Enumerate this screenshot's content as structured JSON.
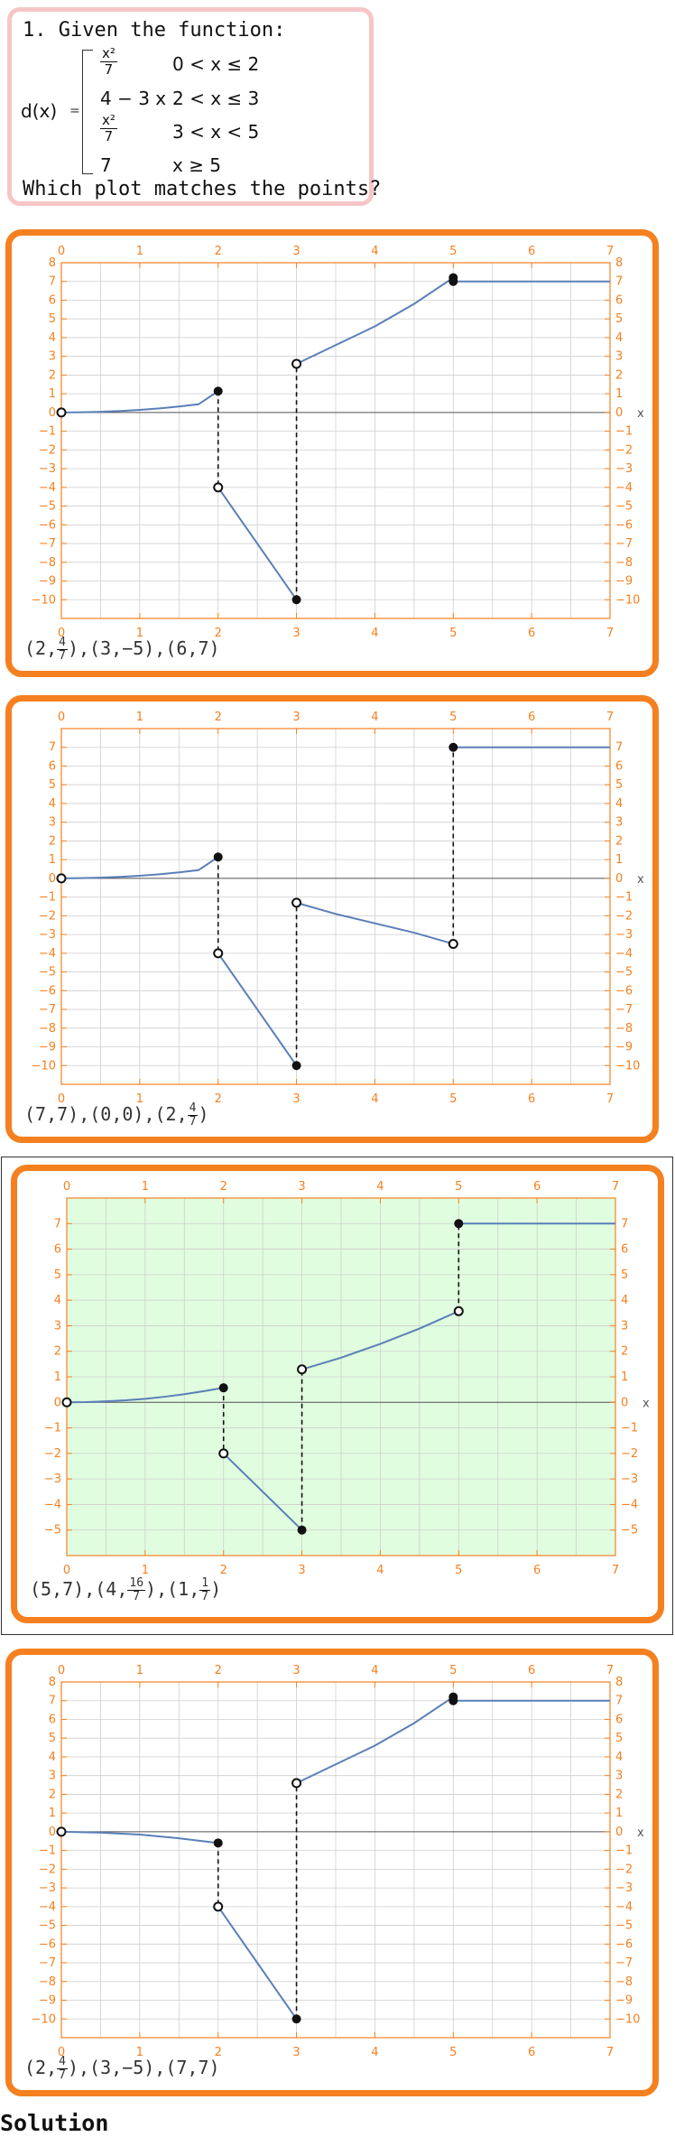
{
  "question": {
    "title": "1. Given the function:",
    "prompt": "Which plot matches the points?",
    "function_name": "d(x)",
    "equals": "=",
    "cases": [
      {
        "expr_type": "fraction",
        "num": "x²",
        "den": "7",
        "cond": "0 < x ≤ 2"
      },
      {
        "expr_type": "text",
        "expr": "4 − 3 x",
        "cond": "2 < x ≤ 3"
      },
      {
        "expr_type": "fraction",
        "num": "x²",
        "den": "7",
        "cond": "3 < x < 5"
      },
      {
        "expr_type": "text",
        "expr": "7",
        "cond": "x ≥ 5"
      }
    ]
  },
  "colors": {
    "frame": "#f5801f",
    "axis": "#f5801f",
    "grid": "#cfcfcf",
    "curve": "#5a7fb8",
    "highlight_bg": "#e0fddf",
    "question_border": "#f6c6c6"
  },
  "chart_data": [
    {
      "type": "line",
      "xlim": [
        0,
        7
      ],
      "ylim": [
        -11,
        8
      ],
      "xticks": [
        0,
        1,
        2,
        3,
        4,
        5,
        6,
        7
      ],
      "yticks": [
        -10,
        -9,
        -8,
        -7,
        -6,
        -5,
        -4,
        -3,
        -2,
        -1,
        0,
        1,
        2,
        3,
        4,
        5,
        6,
        7,
        8
      ],
      "xlabel": "x",
      "grid": true,
      "selected": false,
      "series": [
        {
          "x": [
            0,
            0.25,
            0.5,
            0.75,
            1,
            1.25,
            1.5,
            1.75,
            2
          ],
          "y": [
            0,
            0.01,
            0.04,
            0.08,
            0.14,
            0.22,
            0.32,
            0.44,
            1.14
          ]
        },
        {
          "x": [
            2,
            3
          ],
          "y": [
            -4,
            -10
          ]
        },
        {
          "x": [
            3,
            3.5,
            4,
            4.5,
            5
          ],
          "y": [
            2.6,
            3.6,
            4.6,
            5.8,
            7.2
          ]
        },
        {
          "x": [
            5,
            7
          ],
          "y": [
            7,
            7
          ]
        }
      ],
      "dashed": [
        {
          "x": 2,
          "y1": 1.14,
          "y2": -4
        },
        {
          "x": 3,
          "y1": -10,
          "y2": 2.6
        }
      ],
      "points_filled": [
        [
          2,
          1.14
        ],
        [
          3,
          -10
        ],
        [
          5,
          7.2
        ],
        [
          5,
          7
        ]
      ],
      "points_open": [
        [
          0,
          0
        ],
        [
          2,
          -4
        ],
        [
          3,
          2.6
        ]
      ],
      "caption": [
        {
          "t": "(2,"
        },
        {
          "frac": [
            "4",
            "7"
          ]
        },
        {
          "t": "),(3,−5),(6,7)"
        }
      ]
    },
    {
      "type": "line",
      "xlim": [
        0,
        7
      ],
      "ylim": [
        -11,
        8
      ],
      "xticks": [
        0,
        1,
        2,
        3,
        4,
        5,
        6,
        7
      ],
      "yticks": [
        -10,
        -9,
        -8,
        -7,
        -6,
        -5,
        -4,
        -3,
        -2,
        -1,
        0,
        1,
        2,
        3,
        4,
        5,
        6,
        7
      ],
      "xlabel": "x",
      "grid": true,
      "selected": false,
      "series": [
        {
          "x": [
            0,
            0.25,
            0.5,
            0.75,
            1,
            1.25,
            1.5,
            1.75,
            2
          ],
          "y": [
            0,
            0.01,
            0.04,
            0.08,
            0.14,
            0.22,
            0.32,
            0.44,
            1.14
          ]
        },
        {
          "x": [
            2,
            3
          ],
          "y": [
            -4,
            -10
          ]
        },
        {
          "x": [
            3,
            3.5,
            4,
            4.5,
            5
          ],
          "y": [
            -1.3,
            -1.9,
            -2.4,
            -2.9,
            -3.5
          ]
        },
        {
          "x": [
            5,
            7
          ],
          "y": [
            7,
            7
          ]
        }
      ],
      "dashed": [
        {
          "x": 2,
          "y1": 1.14,
          "y2": -4
        },
        {
          "x": 3,
          "y1": -10,
          "y2": -1.3
        },
        {
          "x": 5,
          "y1": -3.5,
          "y2": 7
        }
      ],
      "points_filled": [
        [
          2,
          1.14
        ],
        [
          3,
          -10
        ],
        [
          5,
          7
        ]
      ],
      "points_open": [
        [
          0,
          0
        ],
        [
          2,
          -4
        ],
        [
          3,
          -1.3
        ],
        [
          5,
          -3.5
        ]
      ],
      "caption": [
        {
          "t": "(7,7),(0,0),(2,"
        },
        {
          "frac": [
            "4",
            "7"
          ]
        },
        {
          "t": ")"
        }
      ]
    },
    {
      "type": "line",
      "xlim": [
        0,
        7
      ],
      "ylim": [
        -6,
        8
      ],
      "xticks": [
        0,
        1,
        2,
        3,
        4,
        5,
        6,
        7
      ],
      "yticks": [
        -5,
        -4,
        -3,
        -2,
        -1,
        0,
        1,
        2,
        3,
        4,
        5,
        6,
        7
      ],
      "xlabel": "x",
      "grid": true,
      "selected": true,
      "series": [
        {
          "x": [
            0,
            0.25,
            0.5,
            0.75,
            1,
            1.25,
            1.5,
            1.75,
            2
          ],
          "y": [
            0,
            0.01,
            0.04,
            0.08,
            0.14,
            0.22,
            0.32,
            0.44,
            0.57
          ]
        },
        {
          "x": [
            2,
            3
          ],
          "y": [
            -2,
            -5
          ]
        },
        {
          "x": [
            3,
            3.5,
            4,
            4.5,
            5
          ],
          "y": [
            1.29,
            1.75,
            2.29,
            2.89,
            3.57
          ]
        },
        {
          "x": [
            5,
            7
          ],
          "y": [
            7,
            7
          ]
        }
      ],
      "dashed": [
        {
          "x": 2,
          "y1": 0.57,
          "y2": -2
        },
        {
          "x": 3,
          "y1": -5,
          "y2": 1.29
        },
        {
          "x": 5,
          "y1": 3.57,
          "y2": 7
        }
      ],
      "points_filled": [
        [
          2,
          0.57
        ],
        [
          3,
          -5
        ],
        [
          5,
          7
        ]
      ],
      "points_open": [
        [
          0,
          0
        ],
        [
          2,
          -2
        ],
        [
          3,
          1.29
        ],
        [
          5,
          3.57
        ]
      ],
      "caption": [
        {
          "t": "(5,7),(4,"
        },
        {
          "frac": [
            "16",
            "7"
          ]
        },
        {
          "t": "),(1,"
        },
        {
          "frac": [
            "1",
            "7"
          ]
        },
        {
          "t": ")"
        }
      ]
    },
    {
      "type": "line",
      "xlim": [
        0,
        7
      ],
      "ylim": [
        -11,
        8
      ],
      "xticks": [
        0,
        1,
        2,
        3,
        4,
        5,
        6,
        7
      ],
      "yticks": [
        -10,
        -9,
        -8,
        -7,
        -6,
        -5,
        -4,
        -3,
        -2,
        -1,
        0,
        1,
        2,
        3,
        4,
        5,
        6,
        7,
        8
      ],
      "xlabel": "x",
      "grid": true,
      "selected": false,
      "series": [
        {
          "x": [
            0,
            0.5,
            1,
            1.5,
            2
          ],
          "y": [
            0,
            -0.05,
            -0.15,
            -0.35,
            -0.6
          ]
        },
        {
          "x": [
            2,
            3
          ],
          "y": [
            -4,
            -10
          ]
        },
        {
          "x": [
            3,
            3.5,
            4,
            4.5,
            5
          ],
          "y": [
            2.6,
            3.6,
            4.6,
            5.8,
            7.2
          ]
        },
        {
          "x": [
            5,
            7
          ],
          "y": [
            7,
            7
          ]
        }
      ],
      "dashed": [
        {
          "x": 2,
          "y1": -0.6,
          "y2": -4
        },
        {
          "x": 3,
          "y1": -10,
          "y2": 2.6
        }
      ],
      "points_filled": [
        [
          2,
          -0.6
        ],
        [
          3,
          -10
        ],
        [
          5,
          7.2
        ],
        [
          5,
          7
        ]
      ],
      "points_open": [
        [
          0,
          0
        ],
        [
          2,
          -4
        ],
        [
          3,
          2.6
        ]
      ],
      "caption": [
        {
          "t": "(2,"
        },
        {
          "frac": [
            "4",
            "7"
          ]
        },
        {
          "t": "),(3,−5),(7,7)"
        }
      ]
    }
  ],
  "solution_label": "Solution"
}
